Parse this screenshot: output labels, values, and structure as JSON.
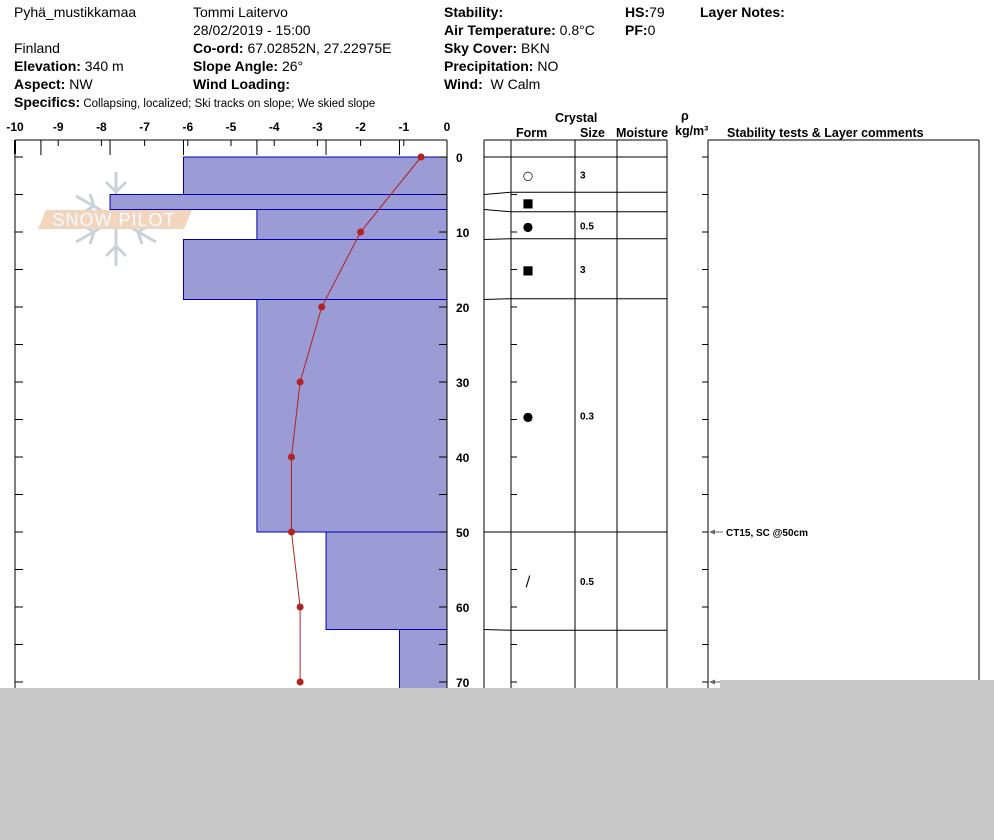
{
  "header": {
    "location": "Pyhä_mustikkamaa",
    "observer": "Tommi Laitervo",
    "datetime": "28/02/2019 - 15:00",
    "country": "Finland",
    "coord_label": "Co-ord:",
    "coord_value": "67.02852N, 27.22975E",
    "elevation_label": "Elevation:",
    "elevation_value": "340 m",
    "slope_label": "Slope Angle:",
    "slope_value": "26°",
    "aspect_label": "Aspect:",
    "aspect_value": "NW",
    "wind_loading_label": "Wind Loading:",
    "wind_loading_value": "",
    "specifics_label": "Specifics:",
    "specifics_value": "Collapsing, localized;  Ski tracks on slope;  We skied slope",
    "stability_label": "Stability:",
    "stability_value": "",
    "air_temp_label": "Air Temperature:",
    "air_temp_value": "0.8°C",
    "sky_label": "Sky Cover:",
    "sky_value": "BKN",
    "precip_label": "Precipitation:",
    "precip_value": "NO",
    "wind_label": "Wind:",
    "wind_value": "W Calm",
    "hs_label": "HS:",
    "hs_value": "79",
    "pf_label": "PF:",
    "pf_value": "0",
    "layer_notes_label": "Layer Notes:"
  },
  "table_headers": {
    "crystal": "Crystal",
    "form": "Form",
    "size": "Size",
    "moisture": "Moisture",
    "rho": "ρ",
    "density_unit": "kg/m³",
    "comments": "Stability tests & Layer comments"
  },
  "logo": {
    "text": "SNOW PILOT"
  },
  "colors": {
    "hardness_fill": "#9b9bd5",
    "hardness_stroke": "#0000b0",
    "temperature": "#b22222",
    "overlay": "#c8c8c8"
  },
  "chart_data": {
    "type": "bar",
    "orientation": "horizontal",
    "x_axis": {
      "ticks": [
        -10,
        -9,
        -8,
        -7,
        -6,
        -5,
        -4,
        -3,
        -2,
        -1,
        0
      ],
      "range": [
        -10,
        0
      ]
    },
    "y_axis": {
      "ticks": [
        0,
        10,
        20,
        30,
        40,
        50,
        60,
        70
      ],
      "range": [
        0,
        73
      ],
      "inverted": true
    },
    "hardness_layers": [
      {
        "top": 0,
        "bottom": 5,
        "value": -6.1
      },
      {
        "top": 5,
        "bottom": 7,
        "value": -7.8
      },
      {
        "top": 7,
        "bottom": 11,
        "value": -4.4
      },
      {
        "top": 11,
        "bottom": 19,
        "value": -6.1
      },
      {
        "top": 19,
        "bottom": 50,
        "value": -4.4
      },
      {
        "top": 50,
        "bottom": 63,
        "value": -2.8
      },
      {
        "top": 63,
        "bottom": 79,
        "value": -1.1
      }
    ],
    "hardness_ticks": [
      -9.4,
      -7.8,
      -6.1,
      -4.4,
      -2.8,
      -1.1
    ],
    "temperature": {
      "depth": [
        0,
        10,
        20,
        30,
        40,
        50,
        60,
        70
      ],
      "temp": [
        -0.6,
        -2.0,
        -2.9,
        -3.4,
        -3.6,
        -3.6,
        -3.4,
        -3.4
      ]
    },
    "crystal_rows": [
      {
        "top": 0,
        "bottom": 4.7,
        "form": "○",
        "form_name": "open-circle",
        "size": "3"
      },
      {
        "top": 4.7,
        "bottom": 7.3,
        "form": "■",
        "form_name": "filled-square",
        "size": ""
      },
      {
        "top": 7.3,
        "bottom": 10.9,
        "form": "●",
        "form_name": "filled-circle",
        "size": "0.5"
      },
      {
        "top": 10.9,
        "bottom": 18.9,
        "form": "■",
        "form_name": "filled-square",
        "size": "3"
      },
      {
        "top": 18.9,
        "bottom": 50,
        "form": "●",
        "form_name": "filled-circle",
        "size": "0.3"
      },
      {
        "top": 50,
        "bottom": 63.1,
        "form": "/",
        "form_name": "slash",
        "size": "0.5"
      }
    ],
    "comments": [
      {
        "depth": 50,
        "text": "CT15, SC @50cm"
      },
      {
        "depth": 70,
        "text": ""
      }
    ]
  }
}
